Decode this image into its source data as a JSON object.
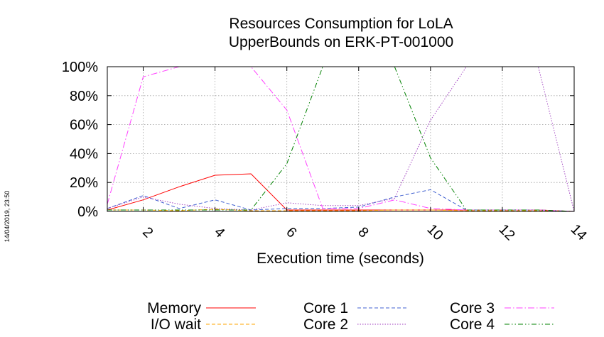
{
  "chart_data": {
    "type": "line",
    "title": [
      "Resources Consumption for LoLA",
      "UpperBounds on ERK-PT-001000"
    ],
    "xlabel": "Execution time (seconds)",
    "ylabel": "",
    "xlim": [
      1,
      14
    ],
    "ylim": [
      0,
      100
    ],
    "x_ticks": [
      2,
      4,
      6,
      8,
      10,
      12,
      14
    ],
    "y_ticks": [
      0,
      20,
      40,
      60,
      80,
      100
    ],
    "y_tick_labels": [
      "0%",
      "20%",
      "40%",
      "60%",
      "80%",
      "100%"
    ],
    "grid": true,
    "legend_position": "bottom",
    "x": [
      1,
      2,
      3,
      4,
      5,
      6,
      7,
      8,
      9,
      10,
      11,
      12,
      13,
      14
    ],
    "series": [
      {
        "name": "Memory",
        "color": "#ff0000",
        "dash": "solid",
        "values": [
          1,
          8,
          17,
          25,
          26,
          1,
          1,
          1,
          1,
          1,
          1,
          1,
          1,
          0
        ]
      },
      {
        "name": "I/O wait",
        "color": "#ffa500",
        "dash": "dashed",
        "values": [
          1,
          1,
          0.5,
          1.5,
          0.5,
          0.5,
          0.5,
          0.5,
          1,
          1,
          0.5,
          0.5,
          0.5,
          0
        ]
      },
      {
        "name": "Core 1",
        "color": "#4060d0",
        "dash": "dashed",
        "values": [
          2,
          11,
          2,
          8,
          1,
          2,
          2,
          3,
          10,
          15,
          1,
          1,
          1,
          0
        ]
      },
      {
        "name": "Core 2",
        "color": "#a040c0",
        "dash": "dotted",
        "values": [
          2,
          10,
          5,
          2,
          1,
          6,
          4,
          4,
          9,
          63,
          100,
          100,
          100,
          0
        ]
      },
      {
        "name": "Core 3",
        "color": "#ff40ff",
        "dash": "dashdot",
        "values": [
          5,
          93,
          100,
          100,
          100,
          70,
          2,
          2,
          8,
          2,
          1,
          1,
          1,
          0
        ]
      },
      {
        "name": "Core 4",
        "color": "#008000",
        "dash": "dashdotdot",
        "values": [
          1,
          1,
          1,
          1,
          1,
          33,
          100,
          100,
          100,
          37,
          1,
          1,
          1,
          0
        ]
      }
    ]
  },
  "timestamp": "14/04/2019, 23:50"
}
